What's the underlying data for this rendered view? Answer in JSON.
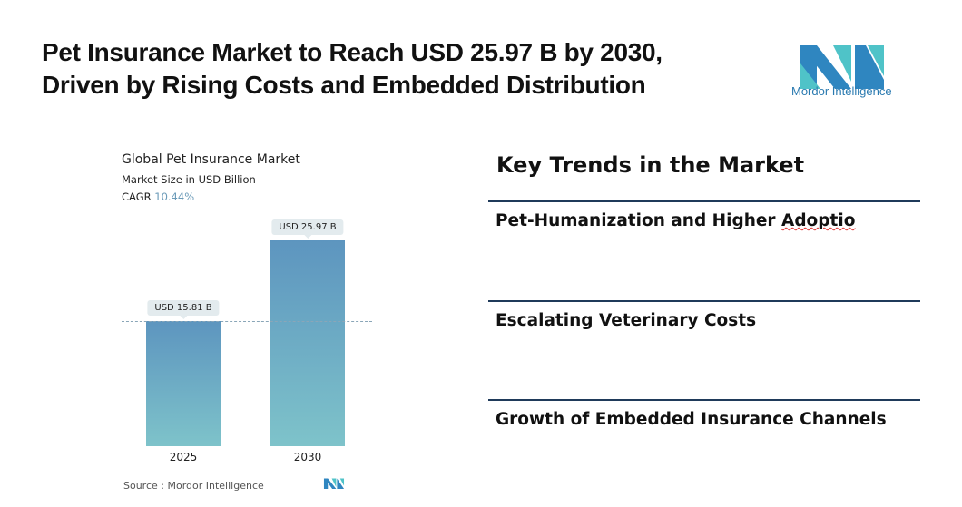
{
  "title_line1": "Pet Insurance Market to Reach USD 25.97 B by 2030,",
  "title_line2": "Driven by Rising Costs and Embedded Distribution",
  "logo_text": "Mordor Intelligence",
  "colors": {
    "bar_top": "#5d95bf",
    "bar_bottom": "#7ec3ca",
    "rule": "#1f3a5a",
    "accent": "#6a9ab8"
  },
  "chart_data": {
    "type": "bar",
    "title": "Global Pet Insurance Market",
    "subtitle": "Market Size in USD Billion",
    "cagr_label": "CAGR",
    "cagr_value": "10.44%",
    "categories": [
      "2025",
      "2030"
    ],
    "values": [
      15.81,
      25.97
    ],
    "data_labels": [
      "USD 15.81 B",
      "USD 25.97 B"
    ],
    "ylim": [
      0,
      28
    ],
    "source": "Source :  Mordor Intelligence"
  },
  "trends": {
    "heading": "Key Trends in the Market",
    "items": [
      "Pet-Humanization and Higher ",
      "Escalating Veterinary Costs",
      "Growth of Embedded Insurance Channels"
    ],
    "item1_misspelled": "Adoptio"
  }
}
